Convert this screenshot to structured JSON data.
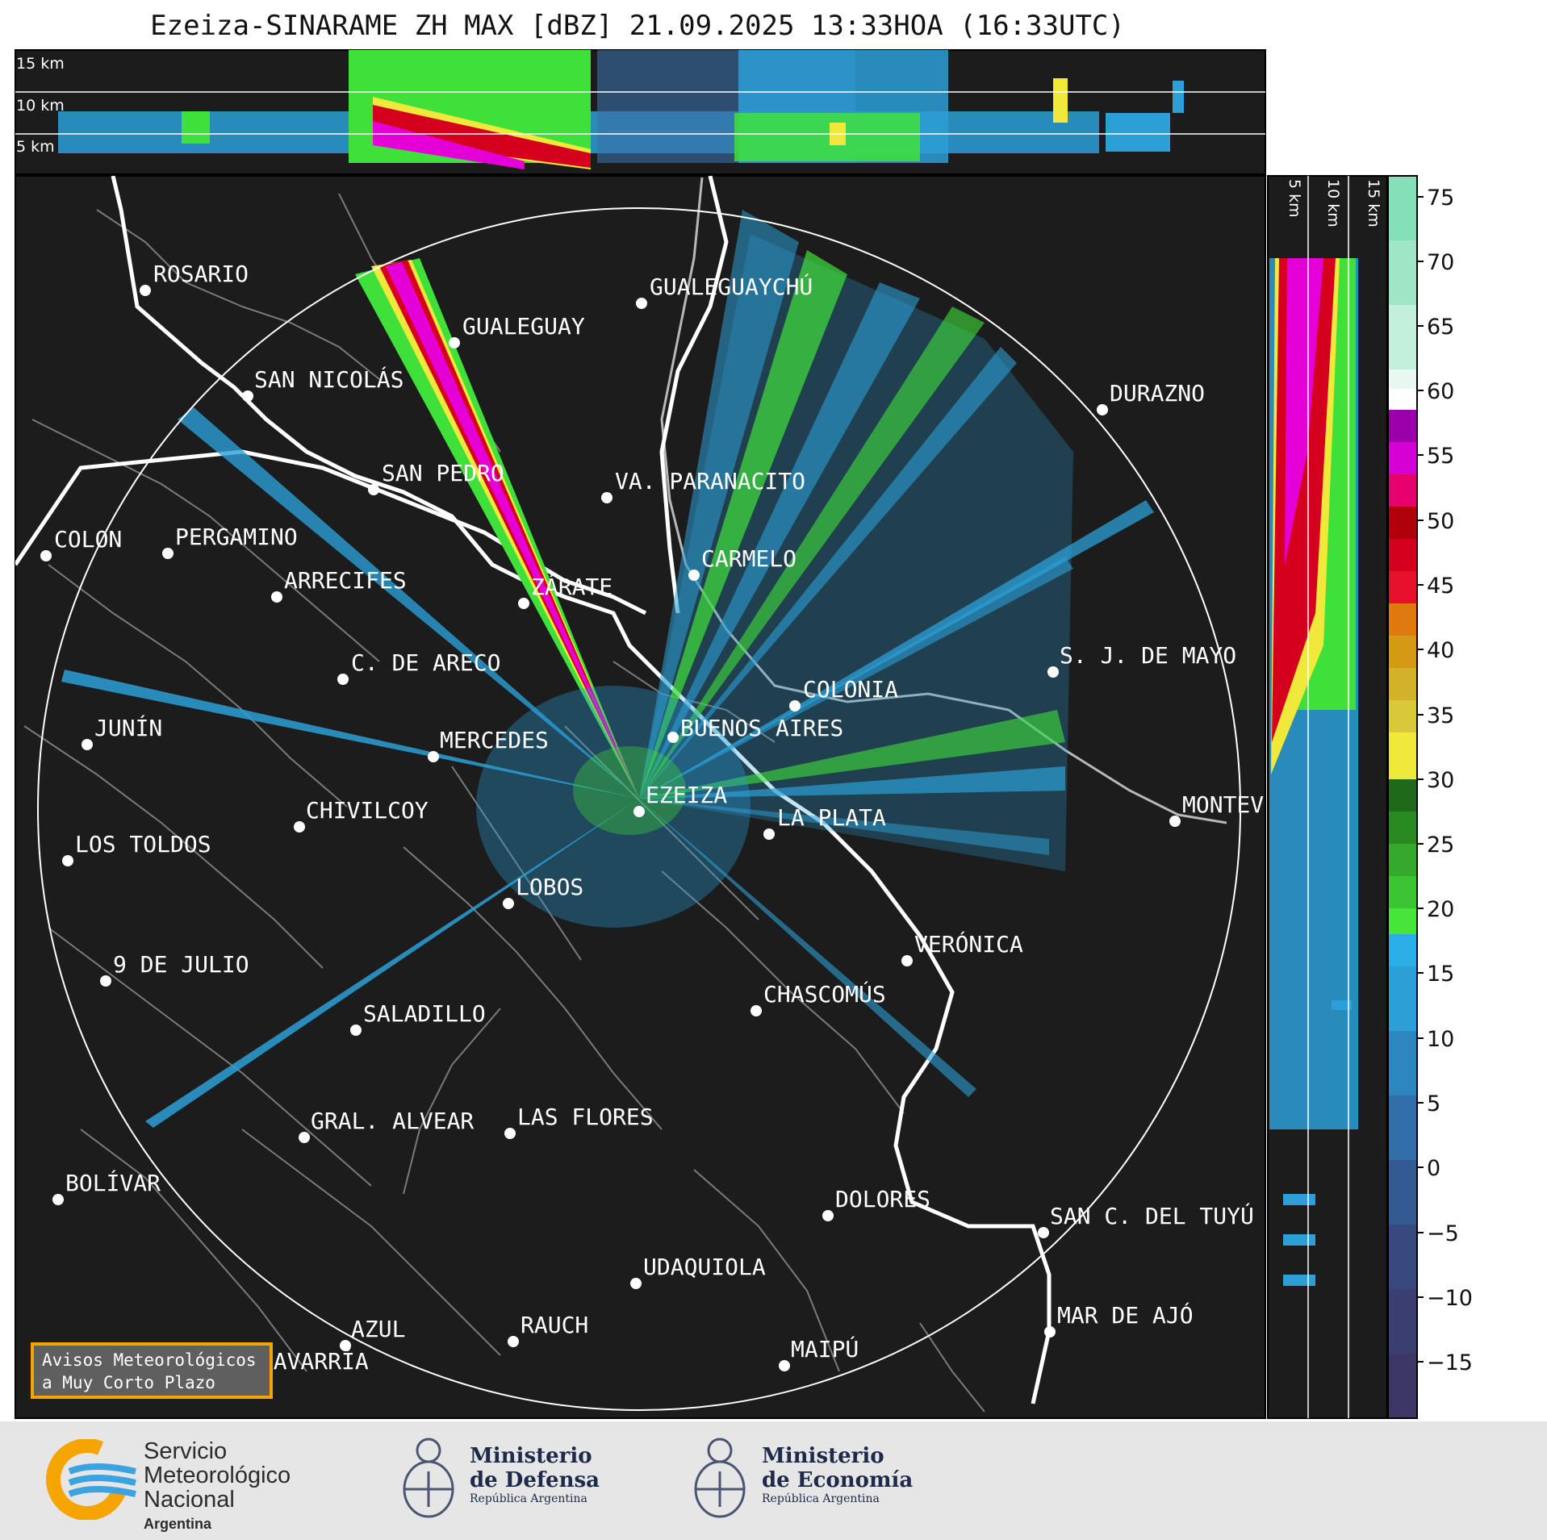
{
  "title": "Ezeiza-SINARAME ZH MAX [dBZ] 21.09.2025 13:33HOA (16:33UTC)",
  "top_panel": {
    "km_labels": [
      "15 km",
      "10 km",
      "5 km"
    ]
  },
  "side_panel": {
    "km_labels": [
      "5 km",
      "10 km",
      "15 km"
    ]
  },
  "colorbar": {
    "ticks": [
      "75",
      "70",
      "65",
      "60",
      "55",
      "50",
      "45",
      "40",
      "35",
      "30",
      "25",
      "20",
      "15",
      "10",
      "5",
      "0",
      "−5",
      "−10",
      "−15"
    ]
  },
  "cities": [
    {
      "name": "ROSARIO"
    },
    {
      "name": "GUALEGUAYCHÚ"
    },
    {
      "name": "GUALEGUAY"
    },
    {
      "name": "SAN NICOLÁS"
    },
    {
      "name": "DURAZNO"
    },
    {
      "name": "SAN PEDRO"
    },
    {
      "name": "VA. PARANACITO"
    },
    {
      "name": "COLON"
    },
    {
      "name": "PERGAMINO"
    },
    {
      "name": "CARMELO"
    },
    {
      "name": "ARRECIFES"
    },
    {
      "name": "ZÁRATE"
    },
    {
      "name": "S. J. DE MAYO"
    },
    {
      "name": "C. DE ARECO"
    },
    {
      "name": "COLONIA"
    },
    {
      "name": "JUNÍN"
    },
    {
      "name": "BUENOS AIRES"
    },
    {
      "name": "MERCEDES"
    },
    {
      "name": "EZEIZA"
    },
    {
      "name": "MONTEV"
    },
    {
      "name": "CHIVILCOY"
    },
    {
      "name": "LA PLATA"
    },
    {
      "name": "LOS TOLDOS"
    },
    {
      "name": "LOBOS"
    },
    {
      "name": "VERÓNICA"
    },
    {
      "name": "9 DE JULIO"
    },
    {
      "name": "CHASCOMÚS"
    },
    {
      "name": "SALADILLO"
    },
    {
      "name": "GRAL. ALVEAR"
    },
    {
      "name": "LAS FLORES"
    },
    {
      "name": "BOLÍVAR"
    },
    {
      "name": "DOLORES"
    },
    {
      "name": "SAN C. DEL TUYÚ"
    },
    {
      "name": "UDAQUIOLA"
    },
    {
      "name": "MAR DE AJÓ"
    },
    {
      "name": "AZUL"
    },
    {
      "name": "RAUCH"
    },
    {
      "name": "OLAVARRÍA"
    },
    {
      "name": "MAIPÚ"
    }
  ],
  "alert": {
    "line1": "Avisos Meteorológicos",
    "line2": "a Muy Corto Plazo"
  },
  "logos": {
    "smn": {
      "line1": "Servicio",
      "line2": "Meteorológico",
      "line3": "Nacional",
      "line4": "Argentina"
    },
    "defensa": {
      "line1": "Ministerio",
      "line2": "de Defensa",
      "line3": "República Argentina"
    },
    "economia": {
      "line1": "Ministerio",
      "line2": "de Economía",
      "line3": "República Argentina"
    }
  },
  "colors": {
    "map_bg": "#1c1c1c",
    "light_blue": "#2b9fd6",
    "green": "#3fe03a",
    "red": "#d4001e",
    "magenta": "#e600d8",
    "yellow": "#f0e83a",
    "brand_orange": "#f5a400"
  }
}
